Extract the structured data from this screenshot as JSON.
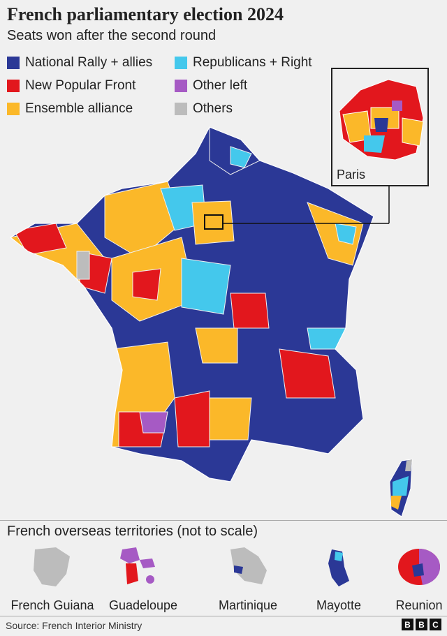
{
  "title": "French parliamentary election 2024",
  "subtitle": "Seats won after the second round",
  "legend": [
    {
      "label": "National Rally + allies",
      "color": "#2b3896"
    },
    {
      "label": "New Popular Front",
      "color": "#e2171d"
    },
    {
      "label": "Ensemble alliance",
      "color": "#fbb829"
    },
    {
      "label": "Republicans + Right",
      "color": "#44c8ec"
    },
    {
      "label": "Other left",
      "color": "#a65ac4"
    },
    {
      "label": "Others",
      "color": "#bcbcbc"
    }
  ],
  "inset": {
    "label": "Paris"
  },
  "overseas": {
    "title": "French overseas territories (not to scale)",
    "territories": [
      {
        "name": "French Guiana"
      },
      {
        "name": "Guadeloupe"
      },
      {
        "name": "Martinique"
      },
      {
        "name": "Mayotte"
      },
      {
        "name": "Reunion"
      }
    ]
  },
  "source": "Source: French Interior Ministry",
  "logo": "BBC"
}
